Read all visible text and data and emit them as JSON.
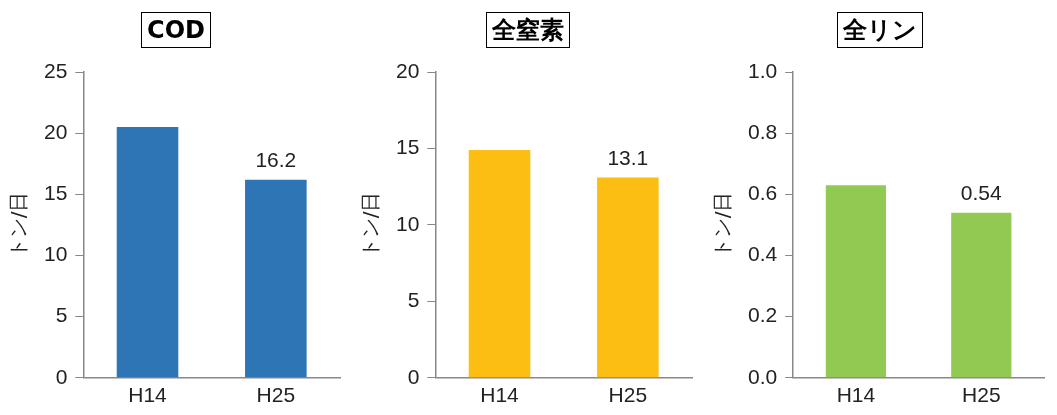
{
  "chart_data": [
    {
      "type": "bar",
      "title": "COD",
      "ylabel": "トン/日",
      "categories": [
        "H14",
        "H25"
      ],
      "series": [
        {
          "color": "#2e75b6",
          "values": [
            20.5,
            16.2
          ],
          "value_labels": [
            null,
            "16.2"
          ]
        }
      ],
      "ylim": [
        0,
        25
      ],
      "yticks": [
        0,
        5,
        10,
        15,
        20,
        25
      ],
      "grid": false,
      "legend": false
    },
    {
      "type": "bar",
      "title": "全窒素",
      "ylabel": "トン/日",
      "categories": [
        "H14",
        "H25"
      ],
      "series": [
        {
          "color": "#fdbe13",
          "values": [
            14.9,
            13.1
          ],
          "value_labels": [
            null,
            "13.1"
          ]
        }
      ],
      "ylim": [
        0,
        20
      ],
      "yticks": [
        0,
        5,
        10,
        15,
        20
      ],
      "grid": false,
      "legend": false
    },
    {
      "type": "bar",
      "title": "全リン",
      "ylabel": "トン/日",
      "categories": [
        "H14",
        "H25"
      ],
      "series": [
        {
          "color": "#92c953",
          "values": [
            0.63,
            0.54
          ],
          "value_labels": [
            null,
            "0.54"
          ]
        }
      ],
      "ylim": [
        0,
        1
      ],
      "yticks": [
        {
          "value": 0,
          "label": "0.0"
        },
        {
          "value": 0.2,
          "label": "0.2"
        },
        {
          "value": 0.4,
          "label": "0.4"
        },
        {
          "value": 0.6,
          "label": "0.6"
        },
        {
          "value": 0.8,
          "label": "0.8"
        },
        {
          "value": 1,
          "label": "1.0"
        }
      ],
      "grid": false,
      "legend": false
    }
  ]
}
